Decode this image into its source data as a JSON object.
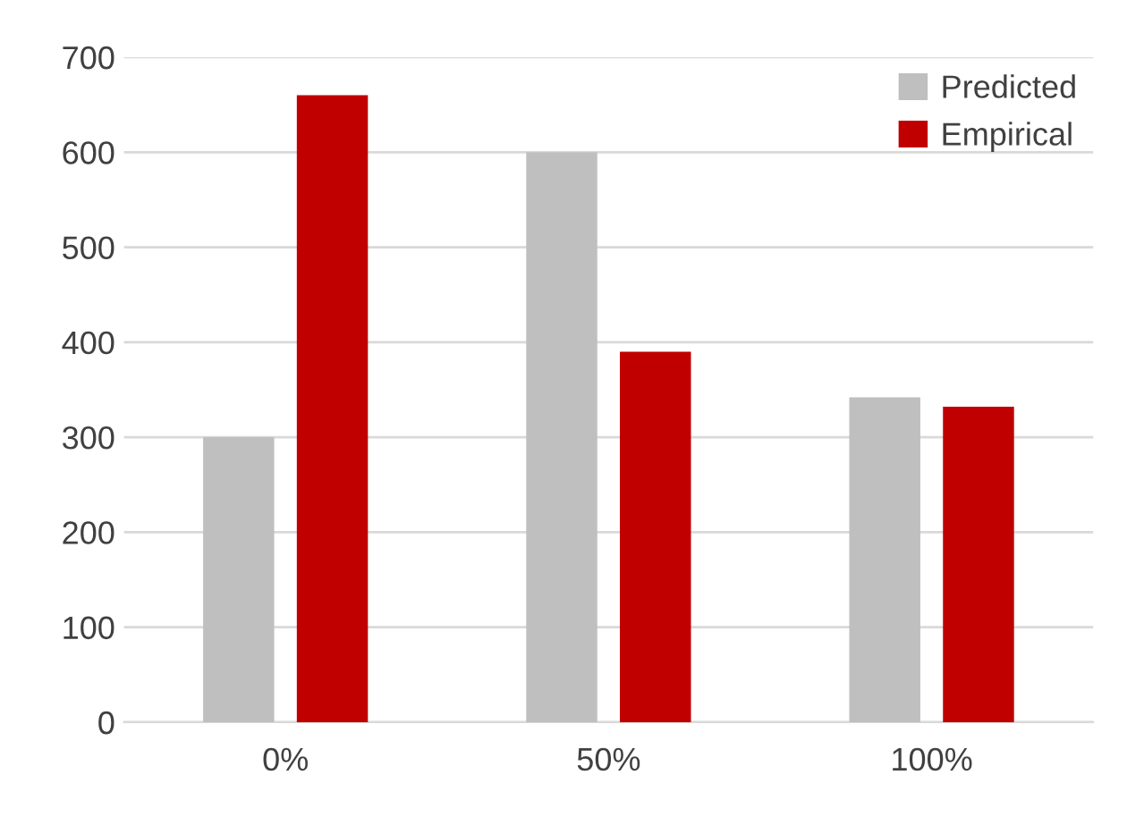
{
  "chart_data": {
    "type": "bar",
    "categories": [
      "0%",
      "50%",
      "100%"
    ],
    "series": [
      {
        "name": "Predicted",
        "color": "#bfbfbf",
        "values": [
          300,
          600,
          342
        ]
      },
      {
        "name": "Empirical",
        "color": "#c00000",
        "values": [
          660,
          390,
          332
        ]
      }
    ],
    "ylim": [
      0,
      700
    ],
    "yticks": [
      0,
      100,
      200,
      300,
      400,
      500,
      600,
      700
    ],
    "grid": "y",
    "legend": "top right"
  }
}
